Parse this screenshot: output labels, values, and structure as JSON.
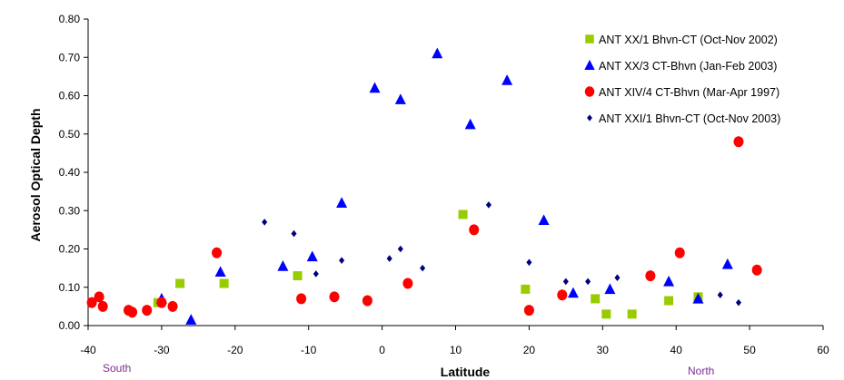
{
  "chart_data": {
    "type": "scatter",
    "xlabel": "Latitude",
    "ylabel": "Aerosol Optical Depth",
    "xlim": [
      -40,
      60
    ],
    "ylim": [
      0,
      0.8
    ],
    "x_ticks": [
      "-40",
      "-30",
      "-20",
      "-10",
      "0",
      "10",
      "20",
      "30",
      "40",
      "50",
      "60"
    ],
    "y_ticks": [
      "0.00",
      "0.10",
      "0.20",
      "0.30",
      "0.40",
      "0.50",
      "0.60",
      "0.70",
      "0.80"
    ],
    "grid": false,
    "legend_position": "top-right",
    "annotations": [
      {
        "text": "South",
        "color": "#7b2d8e",
        "x": -37
      },
      {
        "text": "North",
        "color": "#7b2d8e",
        "x": 44
      }
    ],
    "series": [
      {
        "name": "ANT XX/1 Bhvn-CT (Oct-Nov 2002)",
        "marker": "square",
        "color": "#99cc00",
        "points": [
          [
            -30.5,
            0.06
          ],
          [
            -27.5,
            0.11
          ],
          [
            -21.5,
            0.11
          ],
          [
            -11.5,
            0.13
          ],
          [
            11,
            0.29
          ],
          [
            19.5,
            0.095
          ],
          [
            29,
            0.07
          ],
          [
            30.5,
            0.03
          ],
          [
            34,
            0.03
          ],
          [
            39,
            0.065
          ],
          [
            43,
            0.075
          ]
        ]
      },
      {
        "name": "ANT XX/3 CT-Bhvn (Jan-Feb 2003)",
        "marker": "triangle",
        "color": "#0000ff",
        "points": [
          [
            -30,
            0.07
          ],
          [
            -26,
            0.015
          ],
          [
            -22,
            0.14
          ],
          [
            -13.5,
            0.155
          ],
          [
            -9.5,
            0.18
          ],
          [
            -5.5,
            0.32
          ],
          [
            -1,
            0.62
          ],
          [
            2.5,
            0.59
          ],
          [
            7.5,
            0.71
          ],
          [
            12,
            0.525
          ],
          [
            17,
            0.64
          ],
          [
            22,
            0.275
          ],
          [
            26,
            0.085
          ],
          [
            31,
            0.095
          ],
          [
            39,
            0.115
          ],
          [
            43,
            0.07
          ],
          [
            47,
            0.16
          ]
        ]
      },
      {
        "name": "ANT XIV/4 CT-Bhvn (Mar-Apr 1997)",
        "marker": "circle",
        "color": "#ff0000",
        "points": [
          [
            -39.5,
            0.06
          ],
          [
            -38.5,
            0.075
          ],
          [
            -38,
            0.05
          ],
          [
            -34.5,
            0.04
          ],
          [
            -34,
            0.035
          ],
          [
            -32,
            0.04
          ],
          [
            -30,
            0.06
          ],
          [
            -28.5,
            0.05
          ],
          [
            -22.5,
            0.19
          ],
          [
            -11,
            0.07
          ],
          [
            -6.5,
            0.075
          ],
          [
            -2,
            0.065
          ],
          [
            3.5,
            0.11
          ],
          [
            12.5,
            0.25
          ],
          [
            20,
            0.04
          ],
          [
            24.5,
            0.08
          ],
          [
            36.5,
            0.13
          ],
          [
            40.5,
            0.19
          ],
          [
            48.5,
            0.48
          ],
          [
            51,
            0.145
          ]
        ]
      },
      {
        "name": "ANT XXI/1 Bhvn-CT (Oct-Nov 2003)",
        "marker": "diamond",
        "color": "#000080",
        "points": [
          [
            -16,
            0.27
          ],
          [
            -12,
            0.24
          ],
          [
            -9,
            0.135
          ],
          [
            -5.5,
            0.17
          ],
          [
            1,
            0.175
          ],
          [
            2.5,
            0.2
          ],
          [
            5.5,
            0.15
          ],
          [
            14.5,
            0.315
          ],
          [
            20,
            0.165
          ],
          [
            25,
            0.115
          ],
          [
            28,
            0.115
          ],
          [
            32,
            0.125
          ],
          [
            46,
            0.08
          ],
          [
            48.5,
            0.06
          ]
        ]
      }
    ]
  }
}
